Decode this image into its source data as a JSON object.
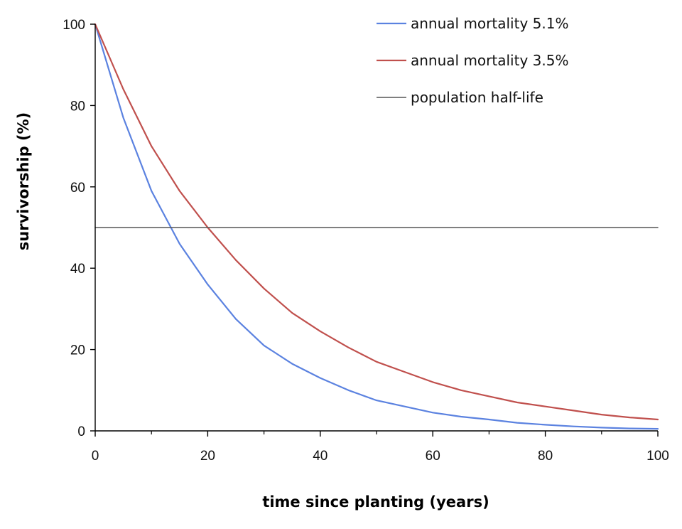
{
  "chart_data": {
    "type": "line",
    "xlabel": "time since planting (years)",
    "ylabel": "survivorship (%)",
    "xlim": [
      0,
      100
    ],
    "ylim": [
      0,
      100
    ],
    "x_ticks": [
      "0",
      "20",
      "40",
      "60",
      "80",
      "100"
    ],
    "y_ticks": [
      "0",
      "20",
      "40",
      "60",
      "80",
      "100"
    ],
    "grid": false,
    "legend_position": "top-right",
    "series": [
      {
        "name": "annual mortality 5.1%",
        "color": "#5b82e0",
        "x": [
          0,
          5,
          10,
          15,
          20,
          25,
          30,
          35,
          40,
          45,
          50,
          55,
          60,
          65,
          70,
          75,
          80,
          85,
          90,
          95,
          100
        ],
        "values": [
          100,
          77,
          59,
          46,
          36,
          27.5,
          21,
          16.5,
          13,
          10,
          7.5,
          6,
          4.5,
          3.5,
          2.8,
          2,
          1.5,
          1.1,
          0.8,
          0.6,
          0.5
        ]
      },
      {
        "name": "annual mortality 3.5%",
        "color": "#c0504d",
        "x": [
          0,
          5,
          10,
          15,
          20,
          25,
          30,
          35,
          40,
          45,
          50,
          55,
          60,
          65,
          70,
          75,
          80,
          85,
          90,
          95,
          100
        ],
        "values": [
          100,
          84,
          70,
          59,
          50,
          42,
          35,
          29,
          24.5,
          20.5,
          17,
          14.5,
          12,
          10,
          8.5,
          7,
          6,
          5,
          4,
          3.3,
          2.8
        ]
      },
      {
        "name": "population half-life",
        "color": "#555555",
        "x": [
          0,
          100
        ],
        "values": [
          50,
          50
        ]
      }
    ]
  }
}
